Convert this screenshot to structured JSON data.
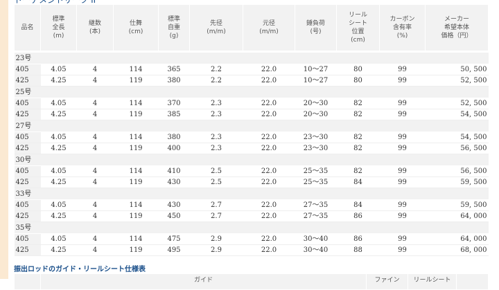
{
  "title": "トーナメントサーフ II",
  "headers": [
    [
      "品名"
    ],
    [
      "標準",
      "全長",
      "(m)"
    ],
    [
      "継数",
      "(本)"
    ],
    [
      "仕舞",
      "(cm)"
    ],
    [
      "標準",
      "自重",
      "(g)"
    ],
    [
      "先径",
      "(m/m)"
    ],
    [
      "元径",
      "(m/m)"
    ],
    [
      "錘負荷",
      "(号)"
    ],
    [
      "リール",
      "シート",
      "位置",
      "(cm)"
    ],
    [
      "カーボン",
      "含有率",
      "(%)"
    ],
    [
      "メーカー",
      "希望本体",
      "価格（円）"
    ]
  ],
  "groups": [
    {
      "label": "23号",
      "rows": [
        [
          "405",
          "4.05",
          "4",
          "114",
          "365",
          "2.2",
          "22.0",
          "10〜27",
          "80",
          "99",
          "50, 500"
        ],
        [
          "425",
          "4.25",
          "4",
          "119",
          "380",
          "2.2",
          "22.0",
          "10〜27",
          "80",
          "99",
          "52, 500"
        ]
      ]
    },
    {
      "label": "25号",
      "rows": [
        [
          "405",
          "4.05",
          "4",
          "114",
          "370",
          "2.3",
          "22.0",
          "20〜30",
          "82",
          "99",
          "52, 500"
        ],
        [
          "425",
          "4.25",
          "4",
          "119",
          "385",
          "2.3",
          "22.0",
          "20〜30",
          "82",
          "99",
          "54, 500"
        ]
      ]
    },
    {
      "label": "27号",
      "rows": [
        [
          "405",
          "4.05",
          "4",
          "114",
          "380",
          "2.3",
          "22.0",
          "23〜30",
          "82",
          "99",
          "54, 500"
        ],
        [
          "425",
          "4.25",
          "4",
          "119",
          "400",
          "2.3",
          "22.0",
          "23〜30",
          "82",
          "99",
          "56, 500"
        ]
      ]
    },
    {
      "label": "30号",
      "rows": [
        [
          "405",
          "4.05",
          "4",
          "114",
          "410",
          "2.5",
          "22.0",
          "25〜35",
          "82",
          "99",
          "56, 500"
        ],
        [
          "425",
          "4.25",
          "4",
          "119",
          "430",
          "2.5",
          "22.0",
          "25〜35",
          "84",
          "99",
          "59, 500"
        ]
      ]
    },
    {
      "label": "33号",
      "rows": [
        [
          "405",
          "4.05",
          "4",
          "114",
          "430",
          "2.7",
          "22.0",
          "27〜35",
          "84",
          "99",
          "59, 500"
        ],
        [
          "425",
          "4.25",
          "4",
          "119",
          "450",
          "2.7",
          "22.0",
          "27〜35",
          "86",
          "99",
          "64, 000"
        ]
      ]
    },
    {
      "label": "35号",
      "rows": [
        [
          "405",
          "4.05",
          "4",
          "114",
          "475",
          "2.9",
          "22.0",
          "30〜40",
          "86",
          "99",
          "64, 000"
        ],
        [
          "425",
          "4.25",
          "4",
          "119",
          "495",
          "2.9",
          "22.0",
          "30〜40",
          "88",
          "99",
          "68, 000"
        ]
      ]
    }
  ],
  "guide_table": {
    "heading": "振出ロッドのガイド・リールシート仕様表",
    "headers": [
      "",
      "ガイド",
      "ファイン",
      "リールシート",
      ""
    ]
  }
}
